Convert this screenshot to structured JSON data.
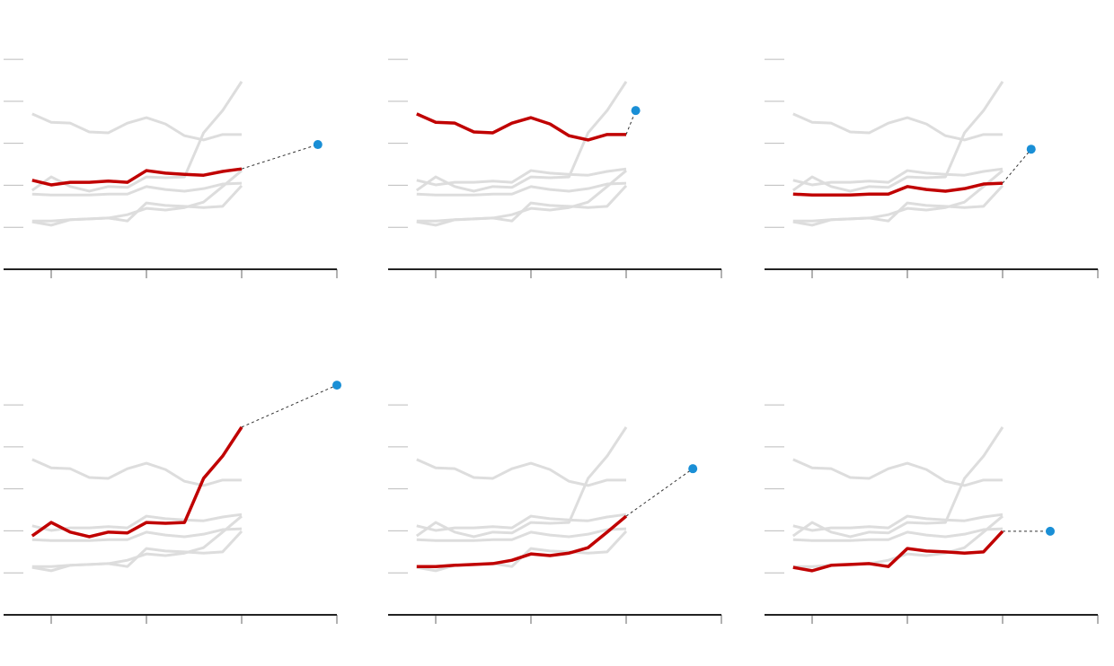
{
  "chart_data": {
    "type": "line",
    "x": [
      0,
      1,
      2,
      3,
      4,
      5,
      6,
      7,
      8,
      9,
      10,
      11
    ],
    "xlim": [
      -1.5,
      16
    ],
    "ylim": [
      0,
      5.6
    ],
    "xticks": [
      1,
      6,
      11,
      16
    ],
    "yticks": [
      1,
      2,
      3,
      4,
      5
    ],
    "context_color": "#dddddd",
    "highlight_color": "#c00000",
    "projection_color": "#1a8fd6",
    "series": [
      {
        "values": [
          2.12,
          2.01,
          2.07,
          2.07,
          2.1,
          2.07,
          2.35,
          2.29,
          2.26,
          2.24,
          2.33,
          2.39
        ],
        "projection": {
          "x": 15,
          "value": 2.97
        }
      },
      {
        "values": [
          3.7,
          3.5,
          3.48,
          3.27,
          3.25,
          3.48,
          3.61,
          3.46,
          3.18,
          3.08,
          3.21,
          3.21
        ],
        "projection": {
          "x": 11.5,
          "value": 3.78
        }
      },
      {
        "values": [
          1.79,
          1.77,
          1.77,
          1.77,
          1.79,
          1.79,
          1.97,
          1.9,
          1.86,
          1.92,
          2.03,
          2.05
        ],
        "projection": {
          "x": 12.5,
          "value": 2.86
        }
      },
      {
        "values": [
          1.88,
          2.2,
          1.97,
          1.86,
          1.97,
          1.95,
          2.2,
          2.18,
          2.2,
          3.25,
          3.78,
          4.47
        ],
        "projection": {
          "x": 16,
          "value": 5.47
        }
      },
      {
        "values": [
          1.15,
          1.15,
          1.18,
          1.2,
          1.22,
          1.3,
          1.45,
          1.41,
          1.47,
          1.6,
          1.97,
          2.35
        ],
        "projection": {
          "x": 14.5,
          "value": 3.48
        }
      },
      {
        "values": [
          1.13,
          1.05,
          1.18,
          1.2,
          1.22,
          1.15,
          1.58,
          1.52,
          1.5,
          1.47,
          1.5,
          1.99
        ],
        "projection": {
          "x": 13.5,
          "value": 1.99
        }
      }
    ]
  }
}
